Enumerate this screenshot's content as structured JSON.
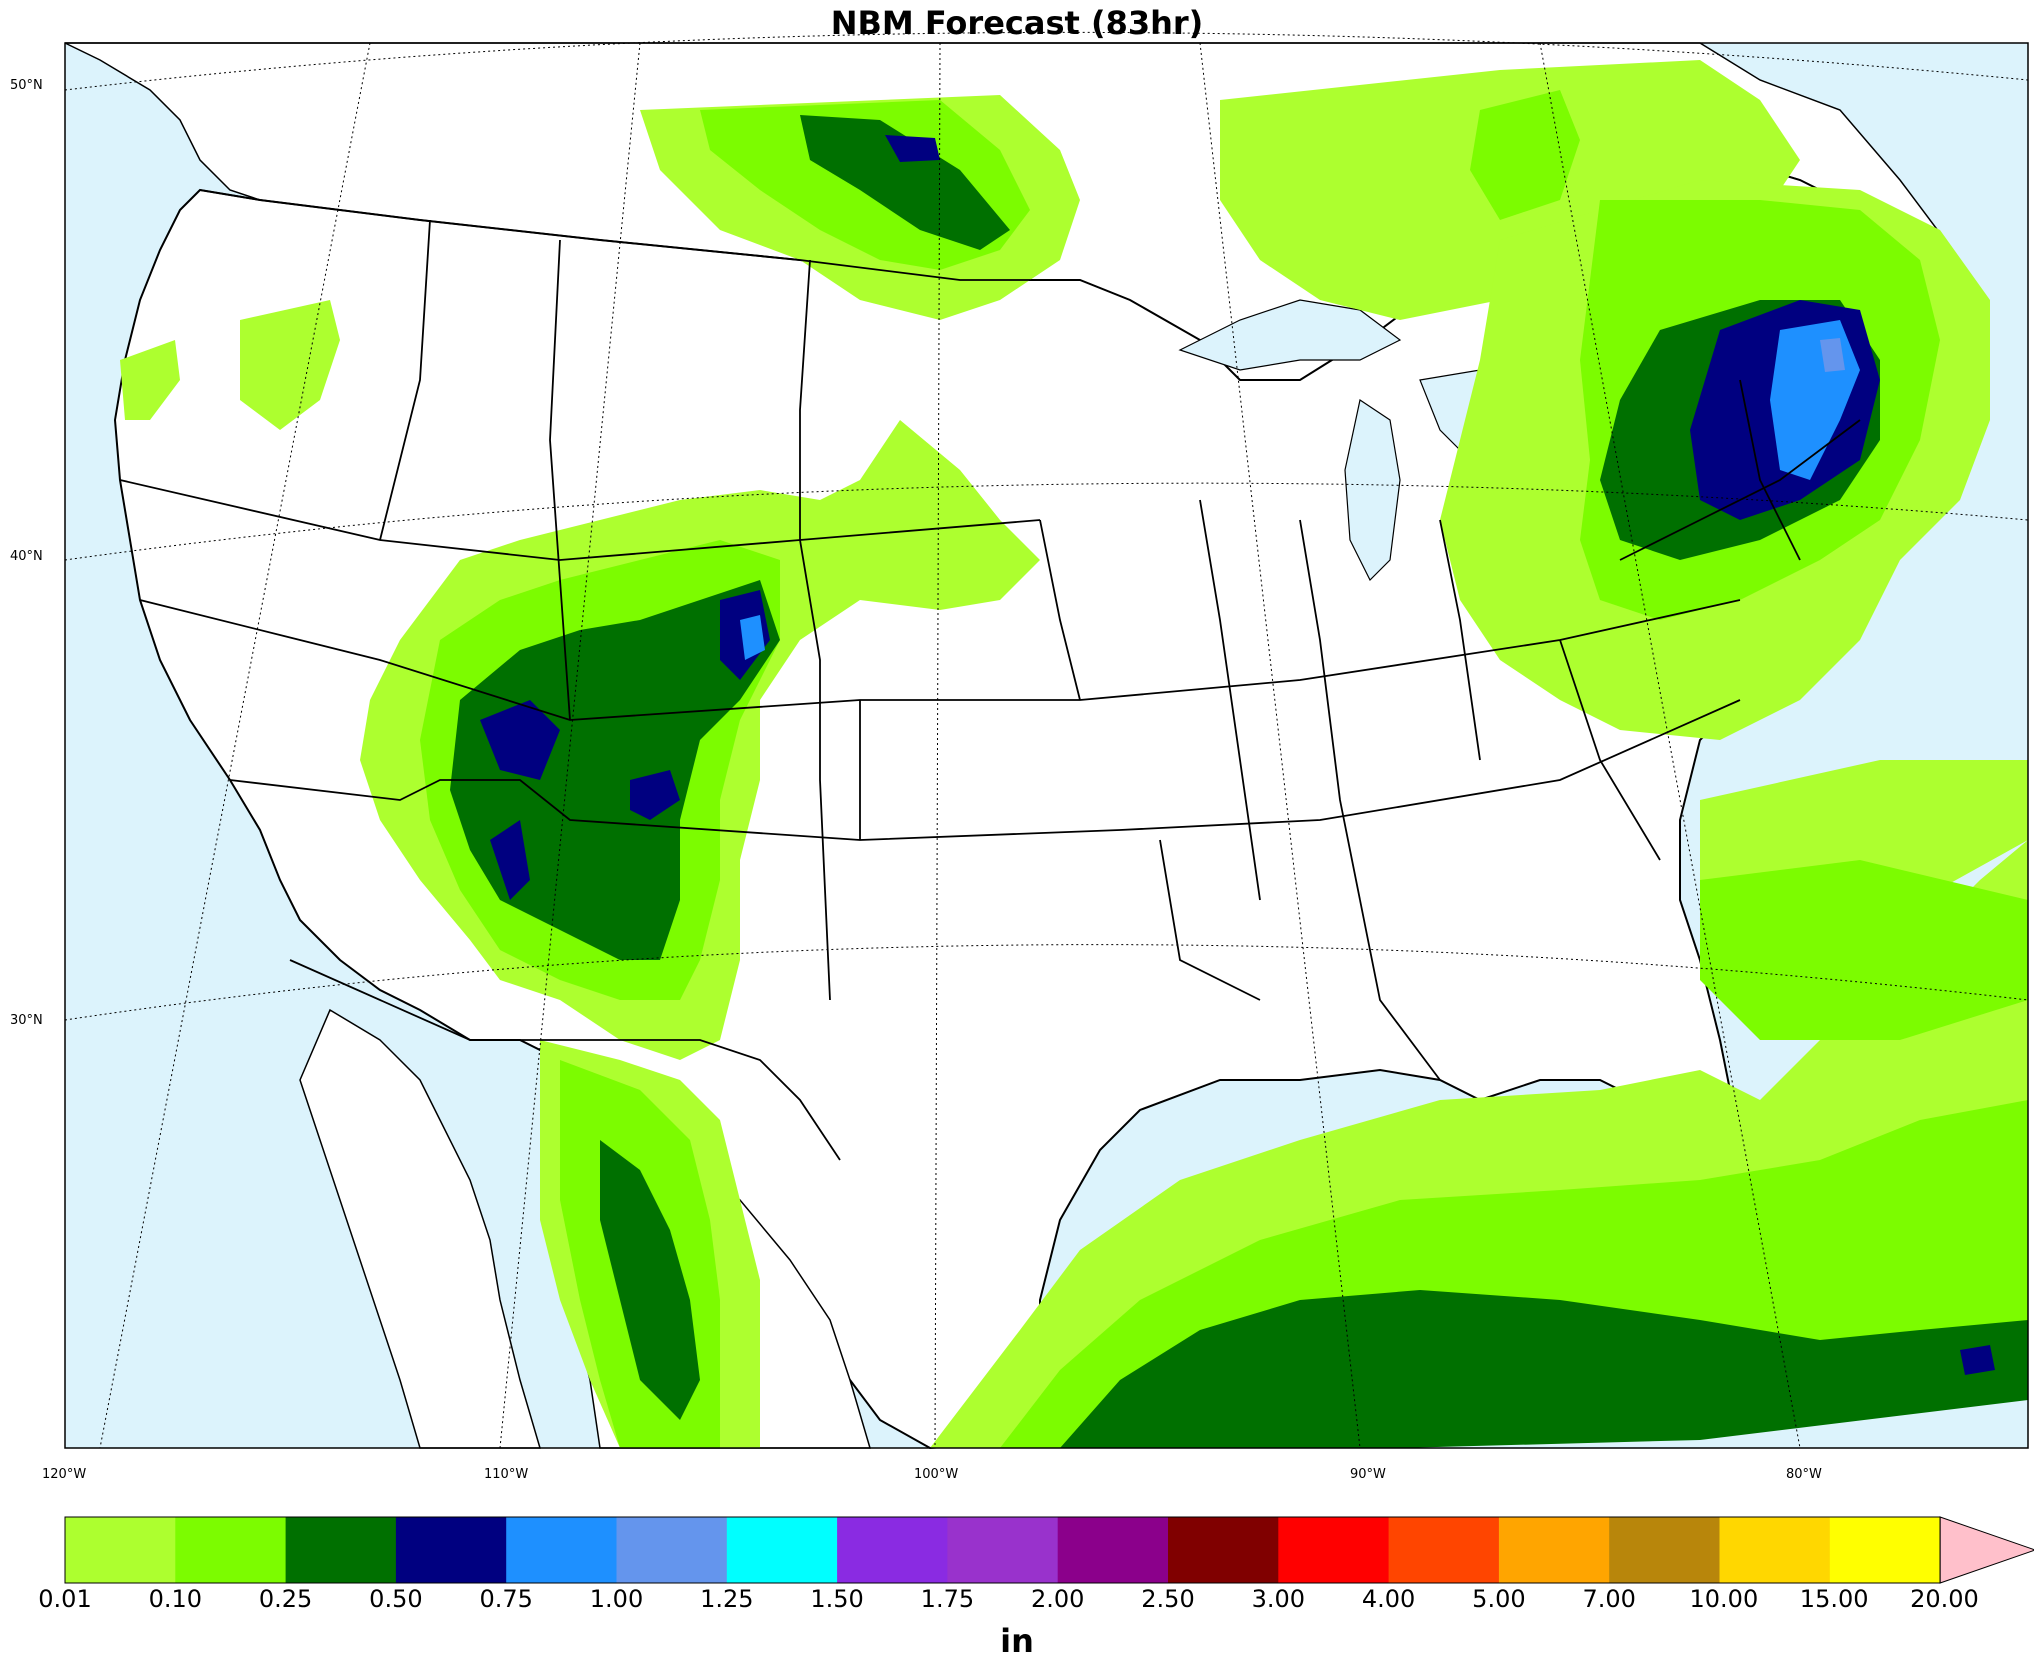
{
  "title": "NBM Forecast (83hr)",
  "colors": {
    "ocean": "#dcf3fc",
    "land": "#ffffff",
    "outline": "#000000"
  },
  "map": {
    "lat_labels": [
      "50°N",
      "40°N",
      "30°N"
    ],
    "lon_labels": [
      "120°W",
      "110°W",
      "100°W",
      "90°W",
      "80°W"
    ],
    "precip_bins": [
      {
        "range": "0.01–0.10",
        "color": "#adff2f"
      },
      {
        "range": "0.10–0.25",
        "color": "#7cfc00"
      },
      {
        "range": "0.25–0.50",
        "color": "#007000"
      },
      {
        "range": "0.50–0.75",
        "color": "#000080"
      },
      {
        "range": "0.75–1.00",
        "color": "#1e90ff"
      },
      {
        "range": "1.00–1.25",
        "color": "#6495ed"
      }
    ]
  },
  "colorbar": {
    "unit": "in",
    "ticks": [
      "0.01",
      "0.10",
      "0.25",
      "0.50",
      "0.75",
      "1.00",
      "1.25",
      "1.50",
      "1.75",
      "2.00",
      "2.50",
      "3.00",
      "4.00",
      "5.00",
      "7.00",
      "10.00",
      "15.00",
      "20.00"
    ],
    "colors": [
      "#adff2f",
      "#7cfc00",
      "#007000",
      "#000080",
      "#1e90ff",
      "#6495ed",
      "#00ffff",
      "#8a2be2",
      "#9932cc",
      "#8b008b",
      "#800000",
      "#ff0000",
      "#ff4500",
      "#ffa500",
      "#b8860b",
      "#ffd700",
      "#ffff00"
    ],
    "extend_color": "#ffc0cb"
  }
}
